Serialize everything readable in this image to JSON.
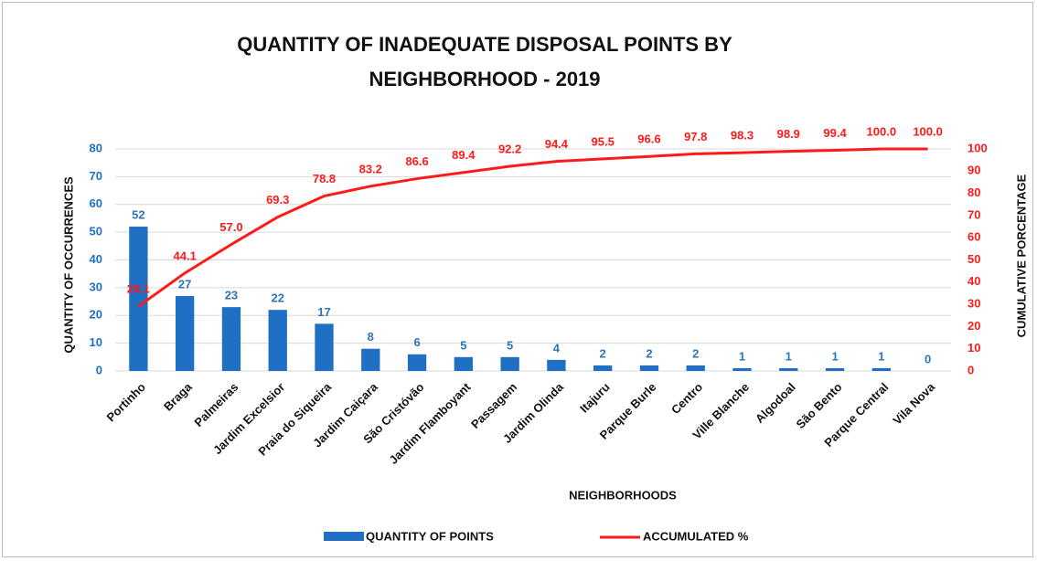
{
  "chart_data": {
    "type": "pareto",
    "title": "QUANTITY OF INADEQUATE DISPOSAL POINTS BY NEIGHBORHOOD - 2019",
    "x_label": "NEIGHBORHOODS",
    "y_label": "QUANTITY OF OCCURRENCES",
    "y2_label": "CUMULATIVE PORCENTAGE",
    "categories": [
      "Portinho",
      "Braga",
      "Palmeiras",
      "Jardim Excelsior",
      "Praia do Siqueira",
      "Jardim Caiçara",
      "São Cristóvão",
      "Jardim Flamboyant",
      "Passagem",
      "Jardim Olinda",
      "Itajuru",
      "Parque Burle",
      "Centro",
      "Ville Blanche",
      "Algodoal",
      "São Bento",
      "Parque Central",
      "Vila Nova"
    ],
    "series": [
      {
        "name": "QUANTITY OF POINTS",
        "type": "bar",
        "color": "#1f6fc5",
        "values": [
          52,
          27,
          23,
          22,
          17,
          8,
          6,
          5,
          5,
          4,
          2,
          2,
          2,
          1,
          1,
          1,
          1,
          0
        ]
      },
      {
        "name": "ACCUMULATED %",
        "type": "line",
        "axis": "y2",
        "color": "#ff1a1a",
        "values": [
          29.1,
          44.1,
          57.0,
          69.3,
          78.8,
          83.2,
          86.6,
          89.4,
          92.2,
          94.4,
          95.5,
          96.6,
          97.8,
          98.3,
          98.9,
          99.4,
          100.0,
          100.0
        ],
        "value_labels": [
          "29.1",
          "44.1",
          "57.0",
          "69.3",
          "78.8",
          "83.2",
          "86.6",
          "89.4",
          "92.2",
          "94.4",
          "95.5",
          "96.6",
          "97.8",
          "98.3",
          "98.9",
          "99.4",
          "100.0",
          "100.0"
        ]
      }
    ],
    "ylim": [
      0,
      80
    ],
    "yticks": [
      0,
      10,
      20,
      30,
      40,
      50,
      60,
      70,
      80
    ],
    "y2lim": [
      0,
      100
    ],
    "y2ticks": [
      0,
      10,
      20,
      30,
      40,
      50,
      60,
      70,
      80,
      90,
      100
    ],
    "grid": true,
    "legend": "bottom"
  }
}
